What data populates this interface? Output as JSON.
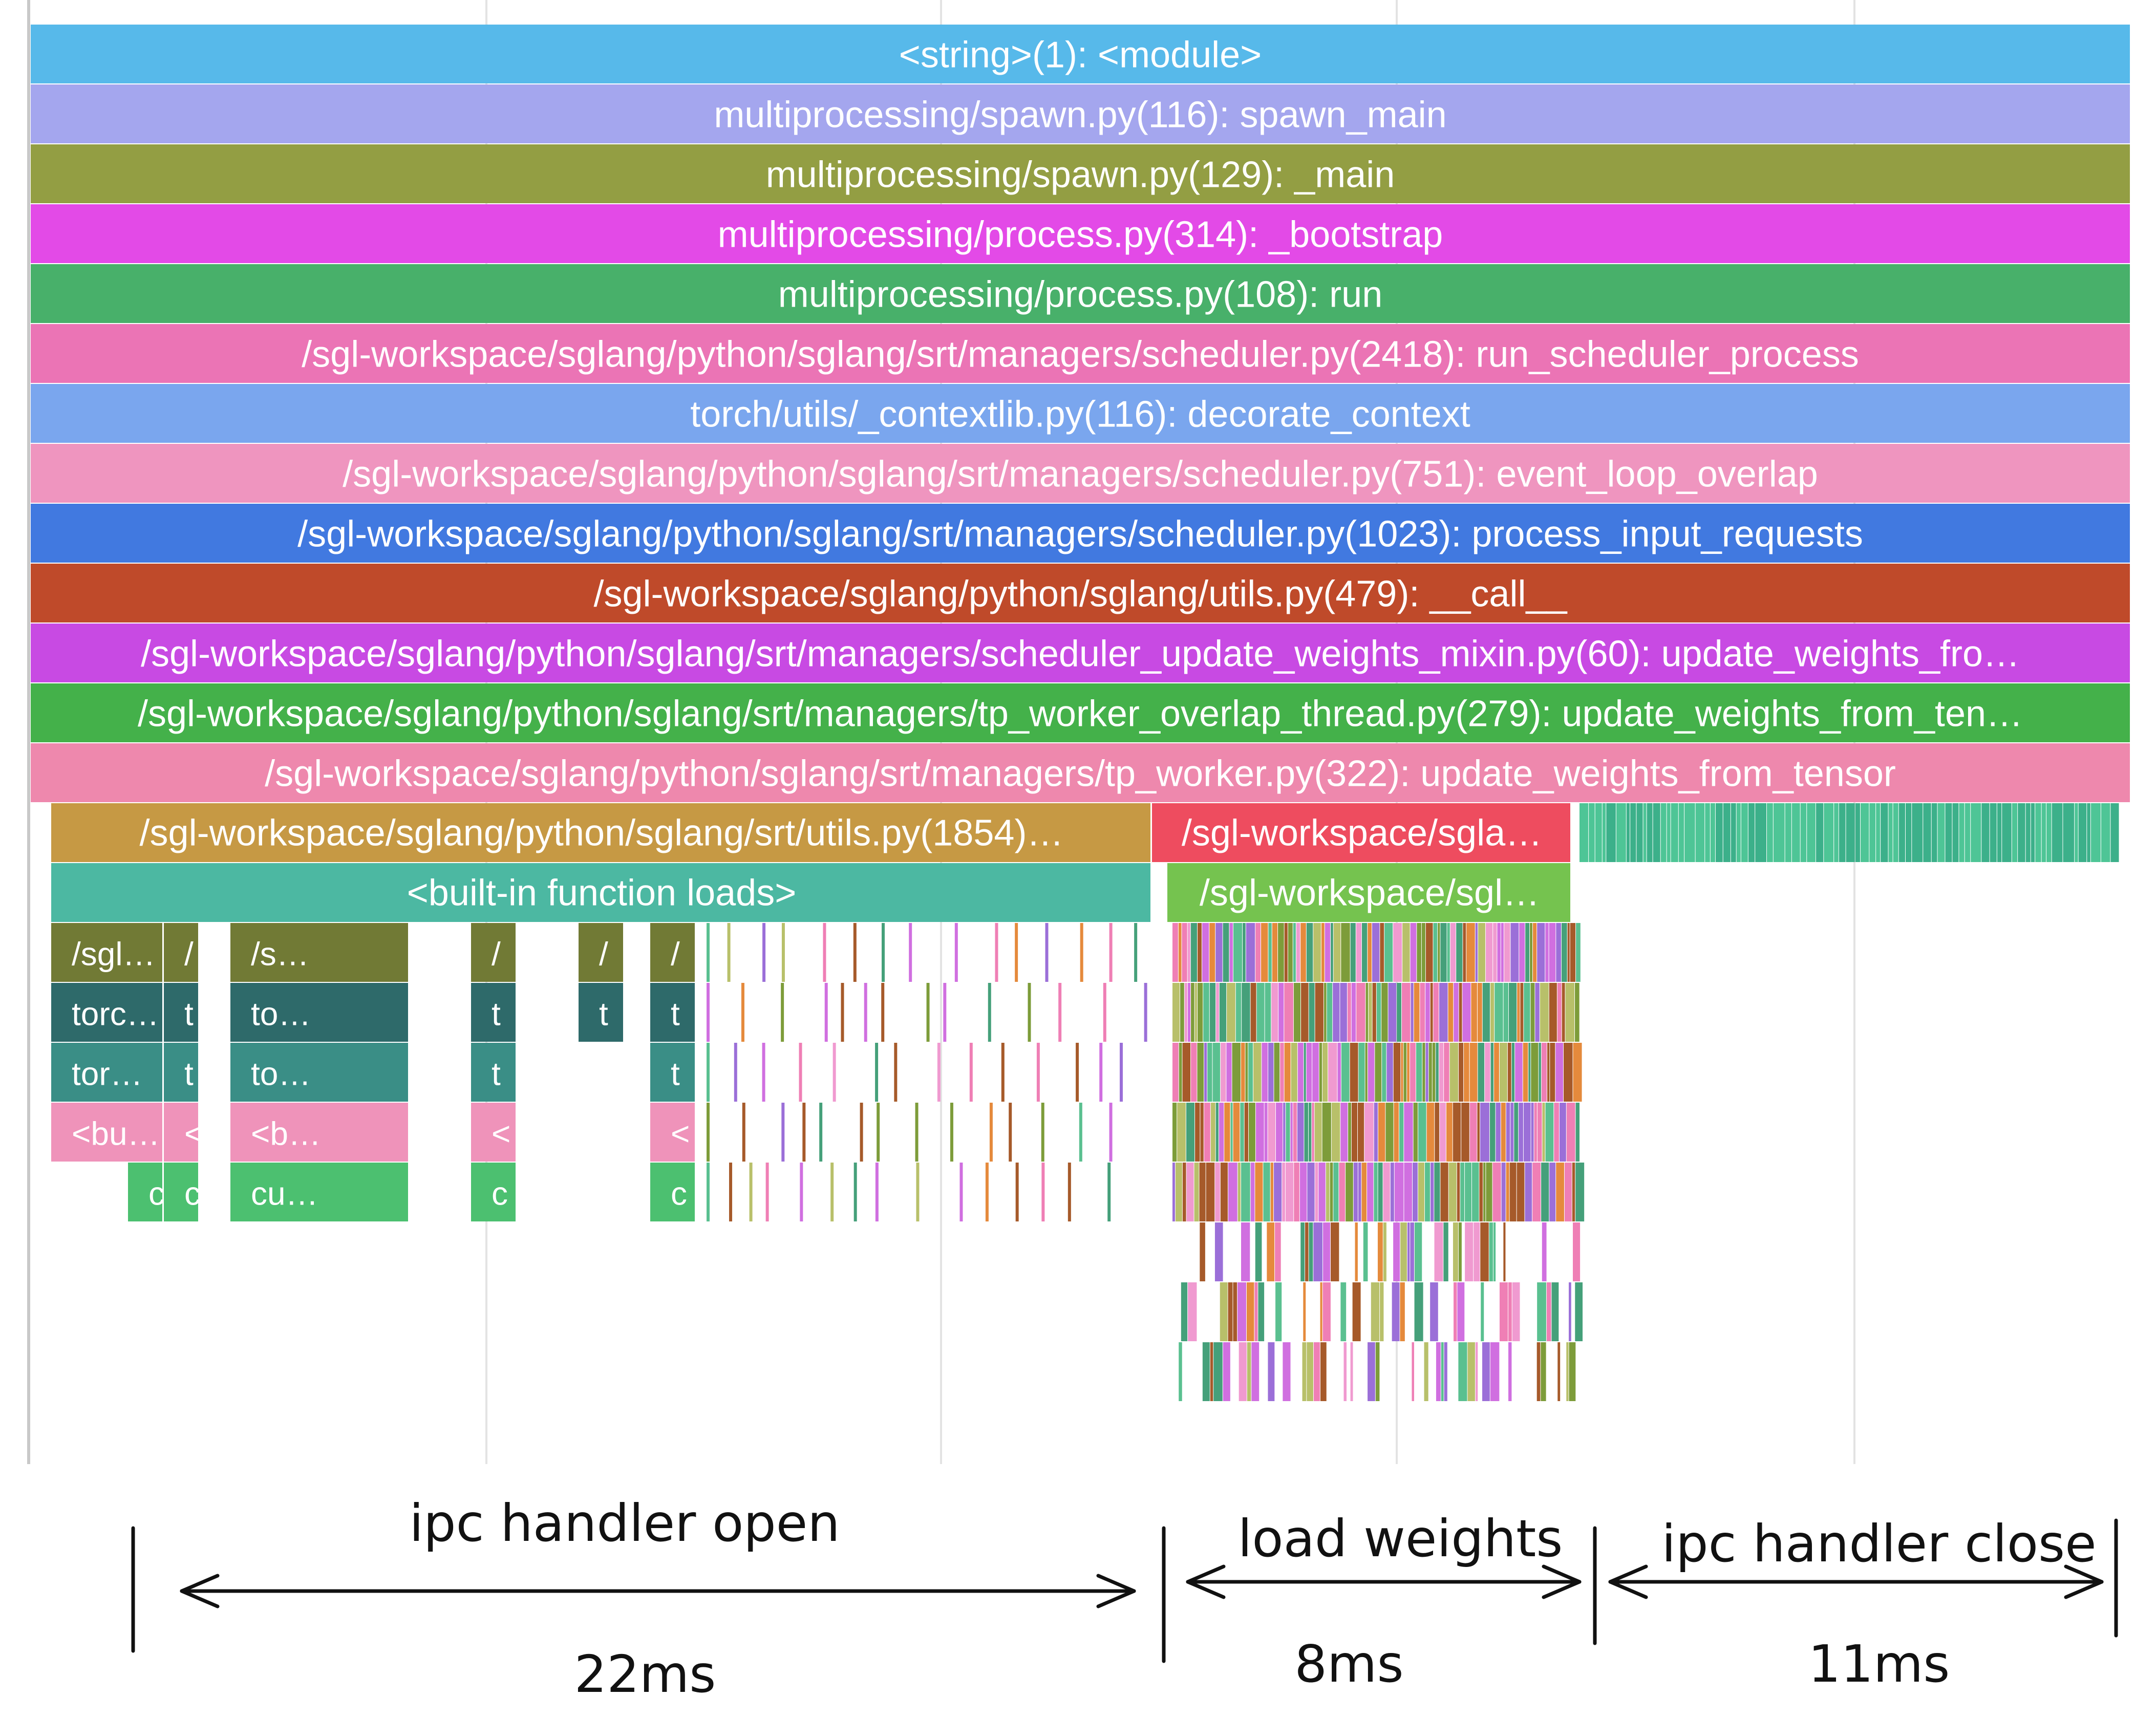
{
  "chart_data": {
    "type": "flamegraph",
    "unit": "ms",
    "total_ms": 41,
    "stack": [
      {
        "label": "<string>(1): <module>",
        "color": "#57b9ea",
        "text_color": "#ffffff"
      },
      {
        "label": "multiprocessing/spawn.py(116): spawn_main",
        "color": "#a4a6ee",
        "text_color": "#ffffff"
      },
      {
        "label": "multiprocessing/spawn.py(129): _main",
        "color": "#939e43",
        "text_color": "#ffffff"
      },
      {
        "label": "multiprocessing/process.py(314): _bootstrap",
        "color": "#e34ae7",
        "text_color": "#ffffff"
      },
      {
        "label": "multiprocessing/process.py(108): run",
        "color": "#48b06a",
        "text_color": "#ffffff"
      },
      {
        "label": "/sgl-workspace/sglang/python/sglang/srt/managers/scheduler.py(2418): run_scheduler_process",
        "color": "#eb74b5",
        "text_color": "#ffffff"
      },
      {
        "label": "torch/utils/_contextlib.py(116): decorate_context",
        "color": "#7aa6ee",
        "text_color": "#ffffff"
      },
      {
        "label": "/sgl-workspace/sglang/python/sglang/srt/managers/scheduler.py(751): event_loop_overlap",
        "color": "#ef95bf",
        "text_color": "#111111"
      },
      {
        "label": "/sgl-workspace/sglang/python/sglang/srt/managers/scheduler.py(1023): process_input_requests",
        "color": "#4179e0",
        "text_color": "#ffffff"
      },
      {
        "label": "/sgl-workspace/sglang/python/sglang/utils.py(479): __call__",
        "color": "#bf4a2a",
        "text_color": "#ffffff"
      },
      {
        "label": "/sgl-workspace/sglang/python/sglang/srt/managers/scheduler_update_weights_mixin.py(60): update_weights_fro…",
        "color": "#c84ae3",
        "text_color": "#ffffff"
      },
      {
        "label": "/sgl-workspace/sglang/python/sglang/srt/managers/tp_worker_overlap_thread.py(279): update_weights_from_ten…",
        "color": "#44b14a",
        "text_color": "#ffffff"
      },
      {
        "label": "/sgl-workspace/sglang/python/sglang/srt/managers/tp_worker.py(322): update_weights_from_tensor",
        "color": "#ee88ad",
        "text_color": "#ffffff"
      }
    ],
    "children": [
      {
        "label": "/sgl-workspace/sglang/python/sglang/srt/utils.py(1854)…",
        "start_ms": 0.4,
        "end_ms": 21.9,
        "depth": 13,
        "color": "#c69944"
      },
      {
        "label": "/sgl-workspace/sgla…",
        "start_ms": 21.9,
        "end_ms": 30.1,
        "depth": 13,
        "color": "#ee4c5f"
      },
      {
        "label": "<built-in function loads>",
        "start_ms": 0.4,
        "end_ms": 21.9,
        "depth": 14,
        "color": "#4cb8a2"
      },
      {
        "label": "/sgl-workspace/sgl…",
        "start_ms": 22.2,
        "end_ms": 30.1,
        "depth": 14,
        "color": "#75c34f"
      },
      {
        "label": "/sgl…",
        "start_ms": 0.4,
        "end_ms": 2.6,
        "depth": 15,
        "color": "#717a35"
      },
      {
        "label": "/",
        "start_ms": 2.6,
        "end_ms": 3.3,
        "depth": 15,
        "color": "#717a35"
      },
      {
        "label": "/s…",
        "start_ms": 3.9,
        "end_ms": 7.4,
        "depth": 15,
        "color": "#717a35"
      },
      {
        "label": "/",
        "start_ms": 8.6,
        "end_ms": 9.5,
        "depth": 15,
        "color": "#717a35"
      },
      {
        "label": "/",
        "start_ms": 10.7,
        "end_ms": 11.6,
        "depth": 15,
        "color": "#717a35"
      },
      {
        "label": "/",
        "start_ms": 12.1,
        "end_ms": 13.0,
        "depth": 15,
        "color": "#717a35"
      },
      {
        "label": "torc…",
        "start_ms": 0.4,
        "end_ms": 2.6,
        "depth": 16,
        "color": "#2e6a6a"
      },
      {
        "label": "t",
        "start_ms": 2.6,
        "end_ms": 3.3,
        "depth": 16,
        "color": "#2e6a6a"
      },
      {
        "label": "to…",
        "start_ms": 3.9,
        "end_ms": 7.4,
        "depth": 16,
        "color": "#2e6a6a"
      },
      {
        "label": "t",
        "start_ms": 8.6,
        "end_ms": 9.5,
        "depth": 16,
        "color": "#2e6a6a"
      },
      {
        "label": "t",
        "start_ms": 10.7,
        "end_ms": 11.6,
        "depth": 16,
        "color": "#2e6a6a"
      },
      {
        "label": "t",
        "start_ms": 12.1,
        "end_ms": 13.0,
        "depth": 16,
        "color": "#2e6a6a"
      },
      {
        "label": "tor…",
        "start_ms": 0.4,
        "end_ms": 2.6,
        "depth": 17,
        "color": "#3a8e86"
      },
      {
        "label": "t",
        "start_ms": 2.6,
        "end_ms": 3.3,
        "depth": 17,
        "color": "#3a8e86"
      },
      {
        "label": "to…",
        "start_ms": 3.9,
        "end_ms": 7.4,
        "depth": 17,
        "color": "#3a8e86"
      },
      {
        "label": "t",
        "start_ms": 8.6,
        "end_ms": 9.5,
        "depth": 17,
        "color": "#3a8e86"
      },
      {
        "label": "t",
        "start_ms": 12.1,
        "end_ms": 13.0,
        "depth": 17,
        "color": "#3a8e86"
      },
      {
        "label": "<bu…",
        "start_ms": 0.4,
        "end_ms": 2.6,
        "depth": 18,
        "color": "#ef93ba"
      },
      {
        "label": "<",
        "start_ms": 2.6,
        "end_ms": 3.3,
        "depth": 18,
        "color": "#ef93ba"
      },
      {
        "label": "<b…",
        "start_ms": 3.9,
        "end_ms": 7.4,
        "depth": 18,
        "color": "#ef93ba"
      },
      {
        "label": "<",
        "start_ms": 8.6,
        "end_ms": 9.5,
        "depth": 18,
        "color": "#ef93ba"
      },
      {
        "label": "<",
        "start_ms": 12.1,
        "end_ms": 13.0,
        "depth": 18,
        "color": "#ef93ba"
      },
      {
        "label": "c",
        "start_ms": 1.9,
        "end_ms": 2.6,
        "depth": 19,
        "color": "#4cc070"
      },
      {
        "label": "c",
        "start_ms": 2.6,
        "end_ms": 3.3,
        "depth": 19,
        "color": "#4cc070"
      },
      {
        "label": "cu…",
        "start_ms": 3.9,
        "end_ms": 7.4,
        "depth": 19,
        "color": "#4cc070"
      },
      {
        "label": "c",
        "start_ms": 8.6,
        "end_ms": 9.5,
        "depth": 19,
        "color": "#4cc070"
      },
      {
        "label": "c",
        "start_ms": 12.1,
        "end_ms": 13.0,
        "depth": 19,
        "color": "#4cc070"
      }
    ],
    "phases": [
      {
        "label": "ipc handler open",
        "duration": "22ms"
      },
      {
        "label": "load weights",
        "duration": "8ms"
      },
      {
        "label": "ipc handler close",
        "duration": "11ms"
      }
    ]
  }
}
